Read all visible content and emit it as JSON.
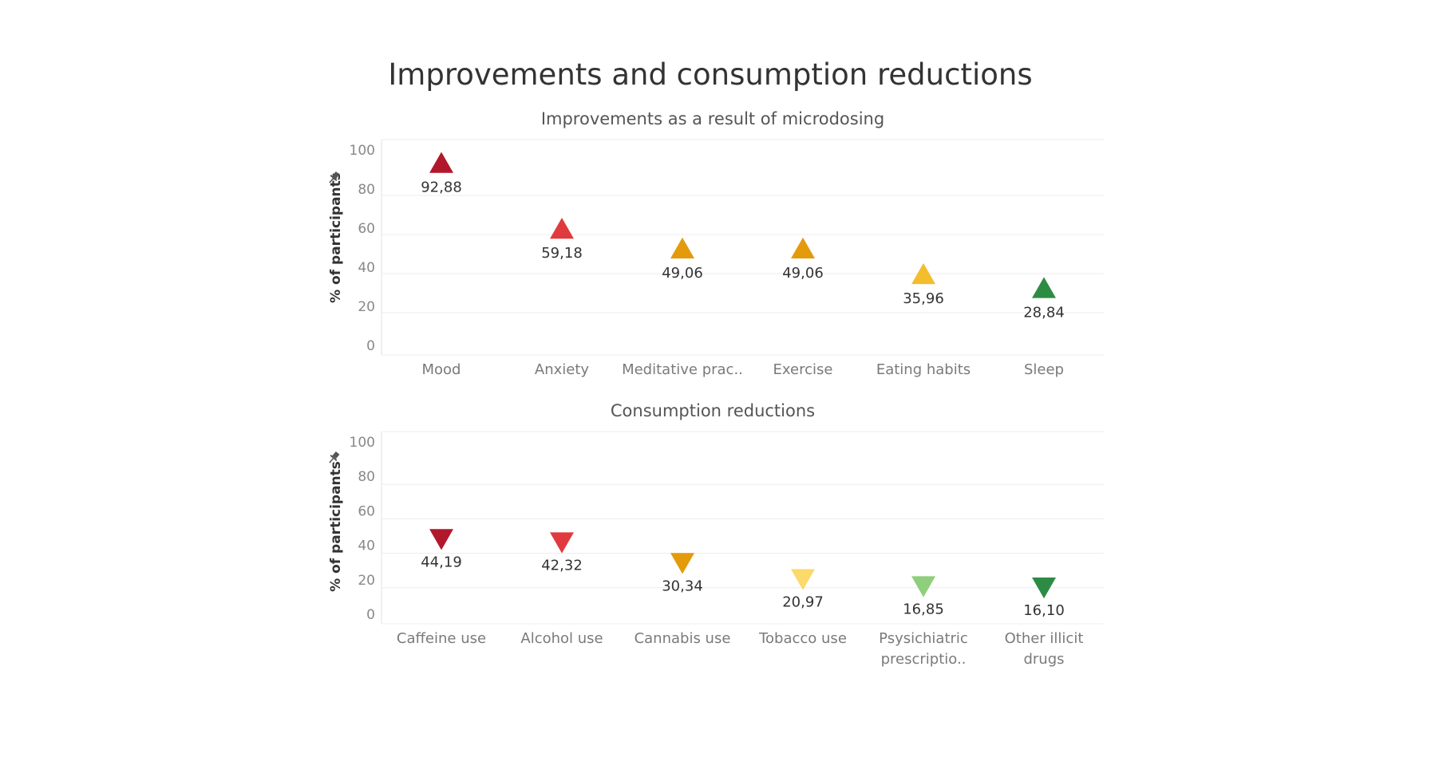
{
  "page": {
    "title": "Improvements and consumption reductions"
  },
  "icons": {
    "pin": "pin-icon"
  },
  "chart_data": [
    {
      "type": "scatter",
      "marker": "triangle-up",
      "title": "Improvements as a result of microdosing",
      "ylabel": "% of participants",
      "ylim": [
        0,
        100
      ],
      "yticks": [
        0,
        20,
        40,
        60,
        80,
        100
      ],
      "grid": true,
      "categories": [
        [
          "Mood"
        ],
        [
          "Anxiety"
        ],
        [
          "Meditative prac.."
        ],
        [
          "Exercise"
        ],
        [
          "Eating habits"
        ],
        [
          "Sleep"
        ]
      ],
      "values": [
        92.88,
        59.18,
        49.06,
        49.06,
        35.96,
        28.84
      ],
      "value_labels": [
        "92,88",
        "59,18",
        "49,06",
        "49,06",
        "35,96",
        "28,84"
      ],
      "colors": [
        "#b2182b",
        "#e03a3e",
        "#e39a0b",
        "#e39a0b",
        "#f3bd2b",
        "#2e8b43"
      ]
    },
    {
      "type": "scatter",
      "marker": "triangle-down",
      "title": "Consumption reductions",
      "ylabel": "% of participants",
      "ylim": [
        0,
        100
      ],
      "yticks": [
        0,
        20,
        40,
        60,
        80,
        100
      ],
      "grid": true,
      "categories": [
        [
          "Caffeine use"
        ],
        [
          "Alcohol use"
        ],
        [
          "Cannabis use"
        ],
        [
          "Tobacco use"
        ],
        [
          "Psysichiatric",
          "prescriptio.."
        ],
        [
          "Other illicit",
          "drugs"
        ]
      ],
      "values": [
        44.19,
        42.32,
        30.34,
        20.97,
        16.85,
        16.1
      ],
      "value_labels": [
        "44,19",
        "42,32",
        "30,34",
        "20,97",
        "16,85",
        "16,10"
      ],
      "colors": [
        "#b2182b",
        "#e03a3e",
        "#e39a0b",
        "#fbd96a",
        "#8fce7a",
        "#2e8b43"
      ]
    }
  ]
}
